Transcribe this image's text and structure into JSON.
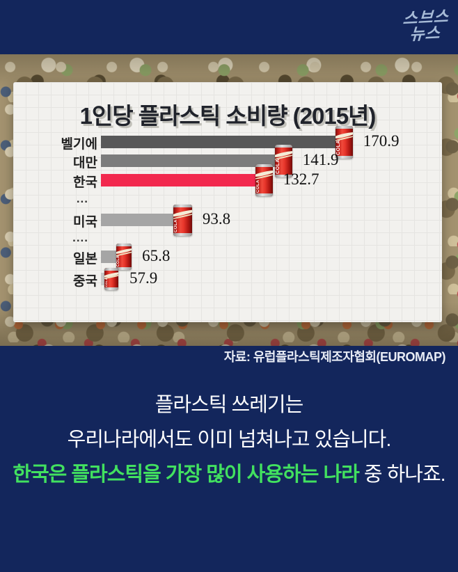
{
  "logo": {
    "line1": "스브스",
    "line2": "뉴스"
  },
  "chart": {
    "title": "1인당 플라스틱 소비량 (2015년)",
    "source": "자료: 유럽플라스틱제조자협회(EUROMAP)",
    "can_text": "COLA"
  },
  "chart_data": {
    "type": "bar",
    "orientation": "horizontal",
    "title": "1인당 플라스틱 소비량 (2015년)",
    "categories": [
      "벨기에",
      "대만",
      "한국",
      "미국",
      "일본",
      "중국"
    ],
    "values": [
      170.9,
      141.9,
      132.7,
      93.8,
      65.8,
      57.9
    ],
    "value_labels": [
      "170.9",
      "141.9",
      "132.7",
      "93.8",
      "65.8",
      "57.9"
    ],
    "highlight": {
      "category": "한국",
      "color": "#f2294e"
    },
    "bar_colors": [
      "#585858",
      "#7c7c7c",
      "#f2294e",
      "#a5a5a5",
      "#a5a5a5",
      "#c9c9c9"
    ],
    "rows": [
      {
        "type": "bar",
        "label": "벨기에",
        "value": "170.9",
        "num": 170.9,
        "color": "#585858"
      },
      {
        "type": "bar",
        "label": "대만",
        "value": "141.9",
        "num": 141.9,
        "color": "#7c7c7c"
      },
      {
        "type": "bar",
        "label": "한국",
        "value": "132.7",
        "num": 132.7,
        "color": "#f2294e",
        "highlight": true
      },
      {
        "type": "ellipsis",
        "label": "..."
      },
      {
        "type": "bar",
        "label": "미국",
        "value": "93.8",
        "num": 93.8,
        "color": "#a5a5a5"
      },
      {
        "type": "ellipsis",
        "label": "...."
      },
      {
        "type": "bar",
        "label": "일본",
        "value": "65.8",
        "num": 65.8,
        "color": "#a5a5a5"
      },
      {
        "type": "bar",
        "label": "중국",
        "value": "57.9",
        "num": 57.9,
        "color": "#c9c9c9"
      }
    ],
    "axis": {
      "shown": false
    },
    "legend": {
      "shown": false
    },
    "grid": "light square grid on card background"
  },
  "caption": {
    "line1": "플라스틱 쓰레기는",
    "line2": "우리나라에서도 이미 넘쳐나고 있습니다.",
    "line3_highlight": "한국은 플라스틱을 가장 많이 사용하는 나라",
    "line3_rest": " 중 하나죠."
  },
  "colors": {
    "background_navy": "#13265c",
    "caption_highlight_green": "#42e15f",
    "korea_bar_red": "#f2294e",
    "card_bg": "#f2f1ee",
    "logo_blue": "#a7bbd7"
  }
}
